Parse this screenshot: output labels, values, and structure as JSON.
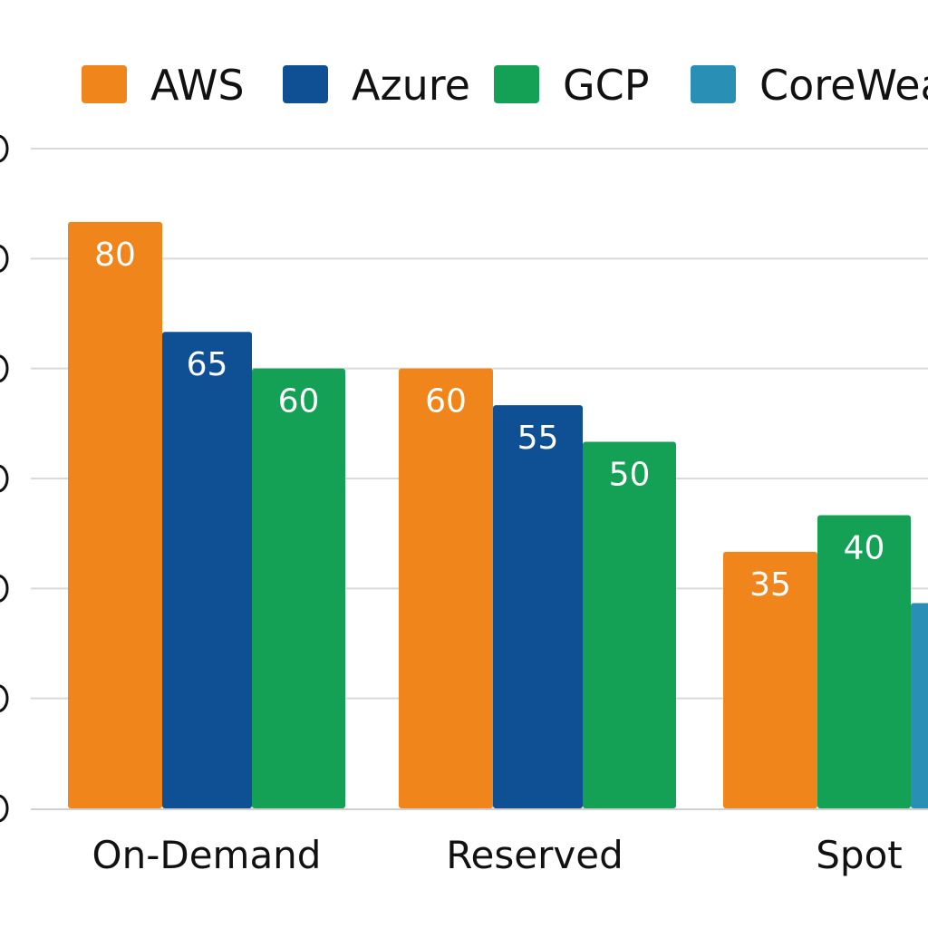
{
  "chart_data": {
    "type": "bar",
    "title": "",
    "xlabel": "",
    "ylabel": "",
    "categories": [
      "On-Demand",
      "Reserved",
      "Spot"
    ],
    "series": [
      {
        "name": "AWS",
        "color": "#f0851b",
        "values": [
          80,
          60,
          35
        ]
      },
      {
        "name": "Azure",
        "color": "#0f4f94",
        "values": [
          65,
          55,
          null
        ]
      },
      {
        "name": "GCP",
        "color": "#14a055",
        "values": [
          60,
          50,
          40
        ]
      },
      {
        "name": "CoreWeave",
        "color": "#2a8fb5",
        "values": [
          null,
          null,
          28
        ]
      }
    ],
    "data_labels": [
      [
        "80",
        "65",
        "60",
        ""
      ],
      [
        "60",
        "55",
        "50",
        ""
      ],
      [
        "35",
        "",
        "40",
        ""
      ]
    ],
    "legend_position": "top",
    "grid": true,
    "ylim": [
      0,
      90
    ]
  }
}
